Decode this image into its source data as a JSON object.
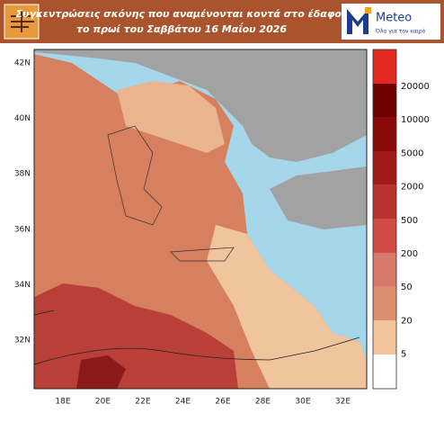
{
  "header": {
    "title_lines": [
      "Συγκεντρώσεις σκόνης που αναμένονται κοντά στο έδαφος",
      "το πρωί του Σαββάτου 16 Μαΐου 2026"
    ]
  },
  "logo": {
    "name": "Meteo",
    "tagline": "Όλα για τον καιρό"
  },
  "map": {
    "lat_labels": [
      "42N",
      "40N",
      "38N",
      "36N",
      "34N",
      "32N"
    ],
    "lon_labels": [
      "18E",
      "20E",
      "22E",
      "24E",
      "26E",
      "28E",
      "30E",
      "32E"
    ]
  },
  "colorbar": {
    "labels": [
      20000,
      10000,
      5000,
      2000,
      500,
      200,
      50,
      20,
      5
    ]
  }
}
